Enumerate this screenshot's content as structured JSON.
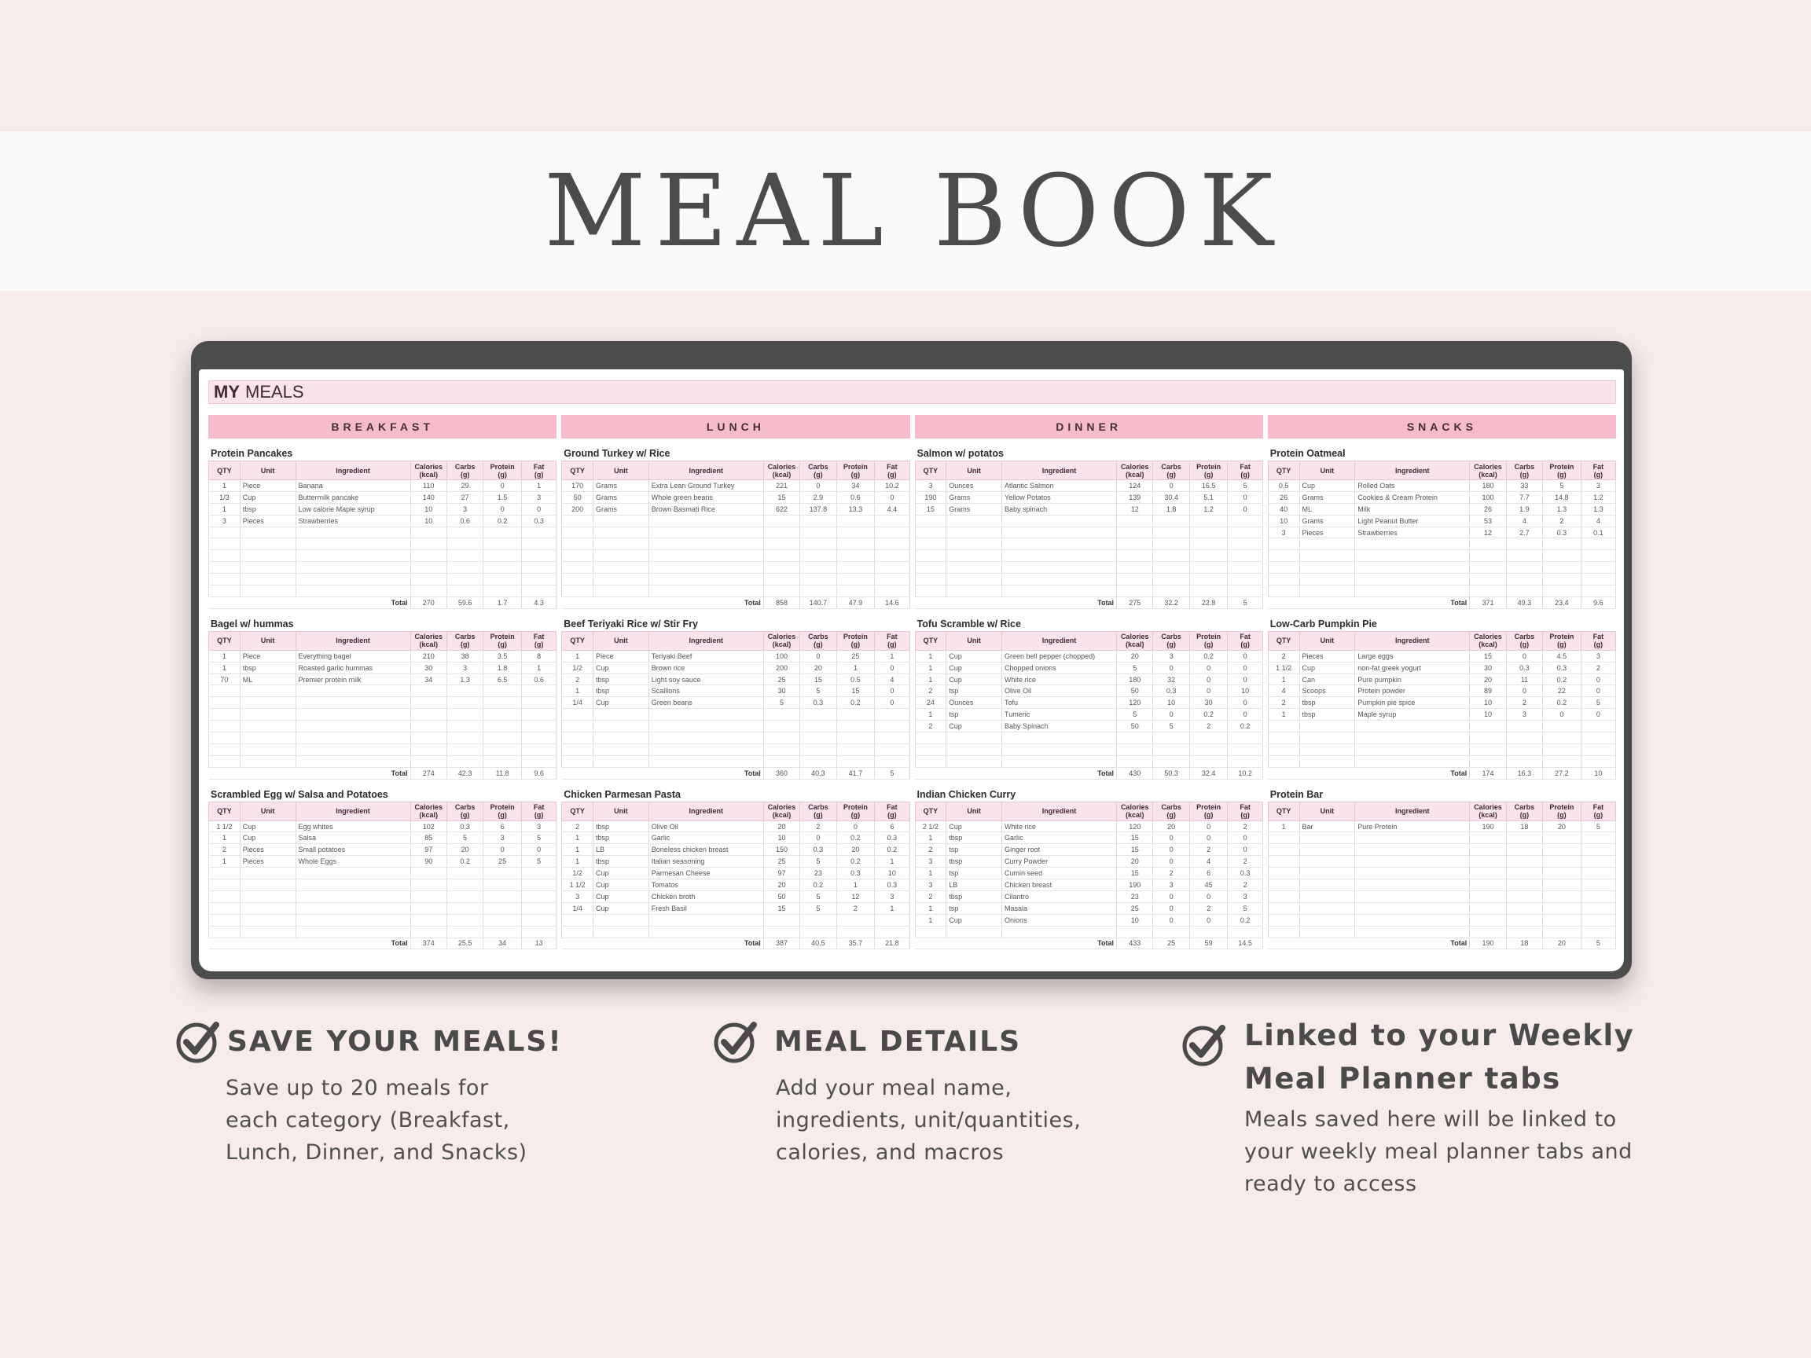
{
  "title": "MEAL BOOK",
  "app": {
    "header_bold": "MY",
    "header_rest": "MEALS",
    "table_headers": [
      "QTY",
      "Unit",
      "Ingredient",
      "Calories\n(kcal)",
      "Carbs\n(g)",
      "Protein\n(g)",
      "Fat\n(g)"
    ],
    "total_label": "Total",
    "categories": [
      {
        "label": "BREAKFAST",
        "meals": [
          {
            "name": "Protein Pancakes",
            "rows": [
              [
                "1",
                "Piece",
                "Banana",
                "110",
                "29",
                "0",
                "1"
              ],
              [
                "1/3",
                "Cup",
                "Buttermilk pancake",
                "140",
                "27",
                "1.5",
                "3"
              ],
              [
                "1",
                "tbsp",
                "Low calorie Maple syrup",
                "10",
                "3",
                "0",
                "0"
              ],
              [
                "3",
                "Pieces",
                "Strawberries",
                "10",
                "0.6",
                "0.2",
                "0.3"
              ]
            ],
            "total": [
              "270",
              "59.6",
              "1.7",
              "4.3"
            ]
          },
          {
            "name": "Bagel w/ hummas",
            "rows": [
              [
                "1",
                "Piece",
                "Everything bagel",
                "210",
                "38",
                "3.5",
                "8"
              ],
              [
                "1",
                "tbsp",
                "Roasted garlic hummas",
                "30",
                "3",
                "1.8",
                "1"
              ],
              [
                "70",
                "ML",
                "Premier protein milk",
                "34",
                "1.3",
                "6.5",
                "0.6"
              ]
            ],
            "total": [
              "274",
              "42.3",
              "11.8",
              "9.6"
            ]
          },
          {
            "name": "Scrambled Egg w/ Salsa and Potatoes",
            "rows": [
              [
                "1 1/2",
                "Cup",
                "Egg whites",
                "102",
                "0.3",
                "6",
                "3"
              ],
              [
                "1",
                "Cup",
                "Salsa",
                "85",
                "5",
                "3",
                "5"
              ],
              [
                "2",
                "Pieces",
                "Small potatoes",
                "97",
                "20",
                "0",
                "0"
              ],
              [
                "1",
                "Pieces",
                "Whole Eggs",
                "90",
                "0.2",
                "25",
                "5"
              ]
            ],
            "total": [
              "374",
              "25.5",
              "34",
              "13"
            ]
          }
        ]
      },
      {
        "label": "LUNCH",
        "meals": [
          {
            "name": "Ground Turkey w/ Rice",
            "rows": [
              [
                "170",
                "Grams",
                "Extra Lean Ground Turkey",
                "221",
                "0",
                "34",
                "10.2"
              ],
              [
                "50",
                "Grams",
                "Whole green beans",
                "15",
                "2.9",
                "0.6",
                "0"
              ],
              [
                "200",
                "Grams",
                "Brown Basmati Rice",
                "622",
                "137.8",
                "13.3",
                "4.4"
              ]
            ],
            "total": [
              "858",
              "140.7",
              "47.9",
              "14.6"
            ]
          },
          {
            "name": "Beef Teriyaki Rice w/ Stir Fry",
            "rows": [
              [
                "1",
                "Piece",
                "Teriyaki Beef",
                "100",
                "0",
                "25",
                "1"
              ],
              [
                "1/2",
                "Cup",
                "Brown rice",
                "200",
                "20",
                "1",
                "0"
              ],
              [
                "2",
                "tbsp",
                "Light soy sauce",
                "25",
                "15",
                "0.5",
                "4"
              ],
              [
                "1",
                "tbsp",
                "Scallions",
                "30",
                "5",
                "15",
                "0"
              ],
              [
                "1/4",
                "Cup",
                "Green beans",
                "5",
                "0.3",
                "0.2",
                "0"
              ]
            ],
            "total": [
              "360",
              "40.3",
              "41.7",
              "5"
            ]
          },
          {
            "name": "Chicken Parmesan Pasta",
            "rows": [
              [
                "2",
                "tbsp",
                "Olive Oil",
                "20",
                "2",
                "0",
                "6"
              ],
              [
                "1",
                "tbsp",
                "Garlic",
                "10",
                "0",
                "0.2",
                "0.3"
              ],
              [
                "1",
                "LB",
                "Boneless chicken breast",
                "150",
                "0.3",
                "20",
                "0.2"
              ],
              [
                "1",
                "tbsp",
                "Italian seasoning",
                "25",
                "5",
                "0.2",
                "1"
              ],
              [
                "1/2",
                "Cup",
                "Parmesan Cheese",
                "97",
                "23",
                "0.3",
                "10"
              ],
              [
                "1 1/2",
                "Cup",
                "Tomatos",
                "20",
                "0.2",
                "1",
                "0.3"
              ],
              [
                "3",
                "Cup",
                "Chicken broth",
                "50",
                "5",
                "12",
                "3"
              ],
              [
                "1/4",
                "Cup",
                "Fresh Basil",
                "15",
                "5",
                "2",
                "1"
              ]
            ],
            "total": [
              "387",
              "40.5",
              "35.7",
              "21.8"
            ]
          }
        ]
      },
      {
        "label": "DINNER",
        "meals": [
          {
            "name": "Salmon w/ potatos",
            "rows": [
              [
                "3",
                "Ounces",
                "Atlantic Salmon",
                "124",
                "0",
                "16.5",
                "5"
              ],
              [
                "190",
                "Grams",
                "Yellow Potatos",
                "139",
                "30.4",
                "5.1",
                "0"
              ],
              [
                "15",
                "Grams",
                "Baby spinach",
                "12",
                "1.8",
                "1.2",
                "0"
              ]
            ],
            "total": [
              "275",
              "32.2",
              "22.8",
              "5"
            ]
          },
          {
            "name": "Tofu Scramble w/ Rice",
            "rows": [
              [
                "1",
                "Cup",
                "Green bell pepper (chopped)",
                "20",
                "3",
                "0.2",
                "0"
              ],
              [
                "1",
                "Cup",
                "Chopped onions",
                "5",
                "0",
                "0",
                "0"
              ],
              [
                "1",
                "Cup",
                "White rice",
                "180",
                "32",
                "0",
                "0"
              ],
              [
                "2",
                "tsp",
                "Olive Oil",
                "50",
                "0.3",
                "0",
                "10"
              ],
              [
                "24",
                "Ounces",
                "Tofu",
                "120",
                "10",
                "30",
                "0"
              ],
              [
                "1",
                "tsp",
                "Tumeric",
                "5",
                "0",
                "0.2",
                "0"
              ],
              [
                "2",
                "Cup",
                "Baby Spinach",
                "50",
                "5",
                "2",
                "0.2"
              ]
            ],
            "total": [
              "430",
              "50.3",
              "32.4",
              "10.2"
            ]
          },
          {
            "name": "Indian Chicken Curry",
            "rows": [
              [
                "2 1/2",
                "Cup",
                "White rice",
                "120",
                "20",
                "0",
                "2"
              ],
              [
                "1",
                "tbsp",
                "Garlic",
                "15",
                "0",
                "0",
                "0"
              ],
              [
                "2",
                "tsp",
                "Ginger root",
                "15",
                "0",
                "2",
                "0"
              ],
              [
                "3",
                "tbsp",
                "Curry Powder",
                "20",
                "0",
                "4",
                "2"
              ],
              [
                "1",
                "tsp",
                "Cumin seed",
                "15",
                "2",
                "6",
                "0.3"
              ],
              [
                "3",
                "LB",
                "Chicken breast",
                "190",
                "3",
                "45",
                "2"
              ],
              [
                "2",
                "tbsp",
                "Cilantro",
                "23",
                "0",
                "0",
                "3"
              ],
              [
                "1",
                "tsp",
                "Masala",
                "25",
                "0",
                "2",
                "5"
              ],
              [
                "1",
                "Cup",
                "Onions",
                "10",
                "0",
                "0",
                "0.2"
              ]
            ],
            "total": [
              "433",
              "25",
              "59",
              "14.5"
            ]
          }
        ]
      },
      {
        "label": "SNACKS",
        "meals": [
          {
            "name": "Protein Oatmeal",
            "rows": [
              [
                "0.5",
                "Cup",
                "Rolled Oats",
                "180",
                "33",
                "5",
                "3"
              ],
              [
                "26",
                "Grams",
                "Cookies & Cream Protein",
                "100",
                "7.7",
                "14.8",
                "1.2"
              ],
              [
                "40",
                "ML",
                "Milk",
                "26",
                "1.9",
                "1.3",
                "1.3"
              ],
              [
                "10",
                "Grams",
                "Light Peanut Butter",
                "53",
                "4",
                "2",
                "4"
              ],
              [
                "3",
                "Pieces",
                "Strawberries",
                "12",
                "2.7",
                "0.3",
                "0.1"
              ]
            ],
            "total": [
              "371",
              "49.3",
              "23.4",
              "9.6"
            ]
          },
          {
            "name": "Low-Carb Pumpkin Pie",
            "rows": [
              [
                "2",
                "Pieces",
                "Large eggs",
                "15",
                "0",
                "4.5",
                "3"
              ],
              [
                "1 1/2",
                "Cup",
                "non-fat greek yogurt",
                "30",
                "0.3",
                "0.3",
                "2"
              ],
              [
                "1",
                "Can",
                "Pure pumpkin",
                "20",
                "11",
                "0.2",
                "0"
              ],
              [
                "4",
                "Scoops",
                "Protein powder",
                "89",
                "0",
                "22",
                "0"
              ],
              [
                "2",
                "tbsp",
                "Pumpkin pie spice",
                "10",
                "2",
                "0.2",
                "5"
              ],
              [
                "1",
                "tbsp",
                "Maple syrup",
                "10",
                "3",
                "0",
                "0"
              ]
            ],
            "total": [
              "174",
              "16.3",
              "27.2",
              "10"
            ]
          },
          {
            "name": "Protein Bar",
            "rows": [
              [
                "1",
                "Bar",
                "Pure Protein",
                "190",
                "18",
                "20",
                "5"
              ]
            ],
            "total": [
              "190",
              "18",
              "20",
              "5"
            ]
          }
        ]
      }
    ]
  },
  "features": [
    {
      "title": "SAVE YOUR MEALS!",
      "text": [
        "Save up to 20 meals for",
        "each category (Breakfast,",
        "Lunch, Dinner, and Snacks)"
      ]
    },
    {
      "title": "MEAL DETAILS",
      "text": [
        "Add your meal name,",
        "ingredients, unit/quantities,",
        "calories, and macros"
      ]
    },
    {
      "title": [
        "Linked to your Weekly",
        "Meal Planner tabs"
      ],
      "text": [
        "Meals saved here will be linked to",
        "your weekly meal planner tabs and",
        "ready to access"
      ]
    }
  ],
  "colors": {
    "background": "#f7ecea",
    "banner": "#fcfaf8",
    "device_frame": "#4c4c4c",
    "category_header": "#f6bccb",
    "table_header": "#fbe3ea",
    "text_dark": "#4a4a4a"
  }
}
